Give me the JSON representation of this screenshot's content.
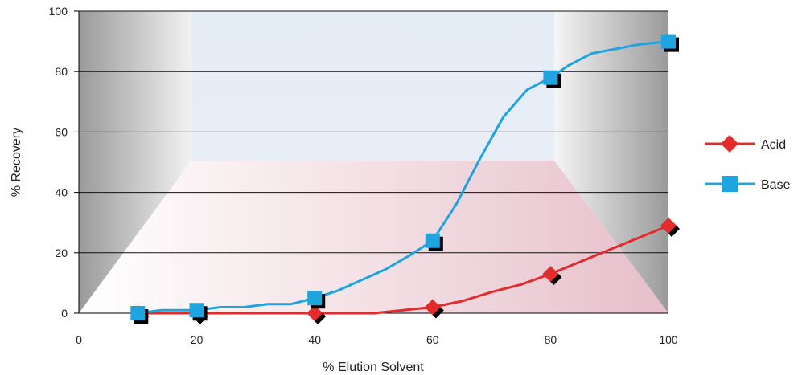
{
  "chart_data": {
    "type": "line",
    "xlabel": "% Elution Solvent",
    "ylabel": "% Recovery",
    "xlim": [
      0,
      100
    ],
    "ylim": [
      0,
      100
    ],
    "x_ticks": [
      0,
      20,
      40,
      60,
      80,
      100
    ],
    "y_ticks": [
      0,
      20,
      40,
      60,
      80,
      100
    ],
    "grid": "horizontal",
    "legend_position": "right",
    "series": [
      {
        "name": "Acid",
        "color": "#e32b2b",
        "marker": "diamond",
        "x": [
          10,
          20,
          40,
          60,
          80,
          100
        ],
        "y": [
          0,
          0,
          0,
          2,
          13,
          29
        ],
        "curve_x": [
          10,
          14,
          20,
          30,
          40,
          50,
          55,
          60,
          65,
          70,
          75,
          80,
          85,
          90,
          95,
          100
        ],
        "curve_y": [
          0,
          0,
          0,
          0,
          0,
          0,
          1,
          2,
          4,
          7,
          9.5,
          13,
          17,
          21,
          25,
          29
        ]
      },
      {
        "name": "Base",
        "color": "#1ea5e0",
        "marker": "square",
        "x": [
          10,
          20,
          40,
          60,
          80,
          100
        ],
        "y": [
          0,
          1,
          5,
          24,
          78,
          90
        ],
        "curve_x": [
          10,
          14,
          18,
          20,
          24,
          28,
          32,
          36,
          40,
          44,
          48,
          52,
          56,
          60,
          64,
          68,
          72,
          76,
          80,
          83,
          87,
          91,
          95,
          100
        ],
        "curve_y": [
          0,
          1,
          1,
          1,
          2,
          2,
          3,
          3,
          5,
          7.5,
          11,
          14.5,
          19,
          24,
          36,
          51,
          65,
          74,
          78,
          82,
          86,
          87.5,
          89,
          90
        ]
      }
    ]
  }
}
